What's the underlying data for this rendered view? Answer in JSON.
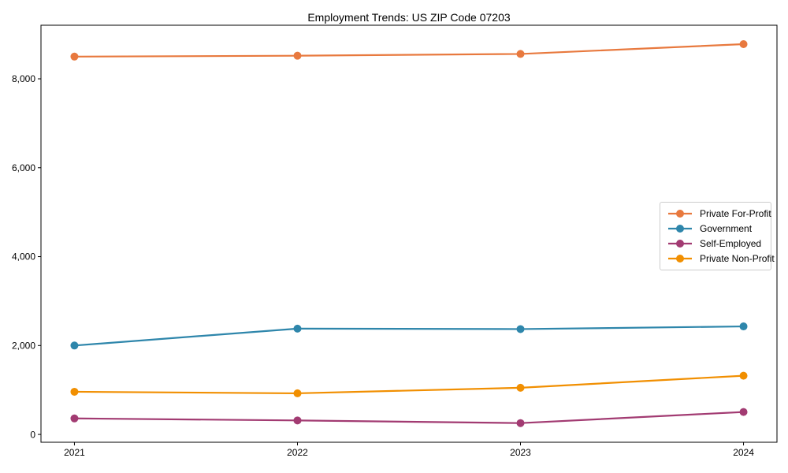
{
  "chart_data": {
    "type": "line",
    "title": "Employment Trends: US ZIP Code 07203",
    "x": [
      2021,
      2022,
      2023,
      2024
    ],
    "x_tick_labels": [
      "2021",
      "2022",
      "2023",
      "2024"
    ],
    "series": [
      {
        "name": "Private For-Profit",
        "color": "#E8793E",
        "values": [
          8500,
          8520,
          8560,
          8780
        ]
      },
      {
        "name": "Government",
        "color": "#2E86AB",
        "values": [
          2000,
          2380,
          2370,
          2430
        ]
      },
      {
        "name": "Self-Employed",
        "color": "#A23B72",
        "values": [
          360,
          315,
          255,
          505
        ]
      },
      {
        "name": "Private Non-Profit",
        "color": "#F18F01",
        "values": [
          960,
          925,
          1050,
          1320
        ]
      }
    ],
    "yticks": [
      0,
      2000,
      4000,
      6000,
      8000
    ],
    "ytick_labels": [
      "0",
      "2,000",
      "4,000",
      "6,000",
      "8,000"
    ],
    "xlim": [
      2020.85,
      2024.15
    ],
    "ylim": [
      -176,
      9206
    ],
    "xlabel": "",
    "ylabel": "",
    "grid": false,
    "legend_position": "center right",
    "axis_color": "#000000",
    "background": "#ffffff"
  }
}
